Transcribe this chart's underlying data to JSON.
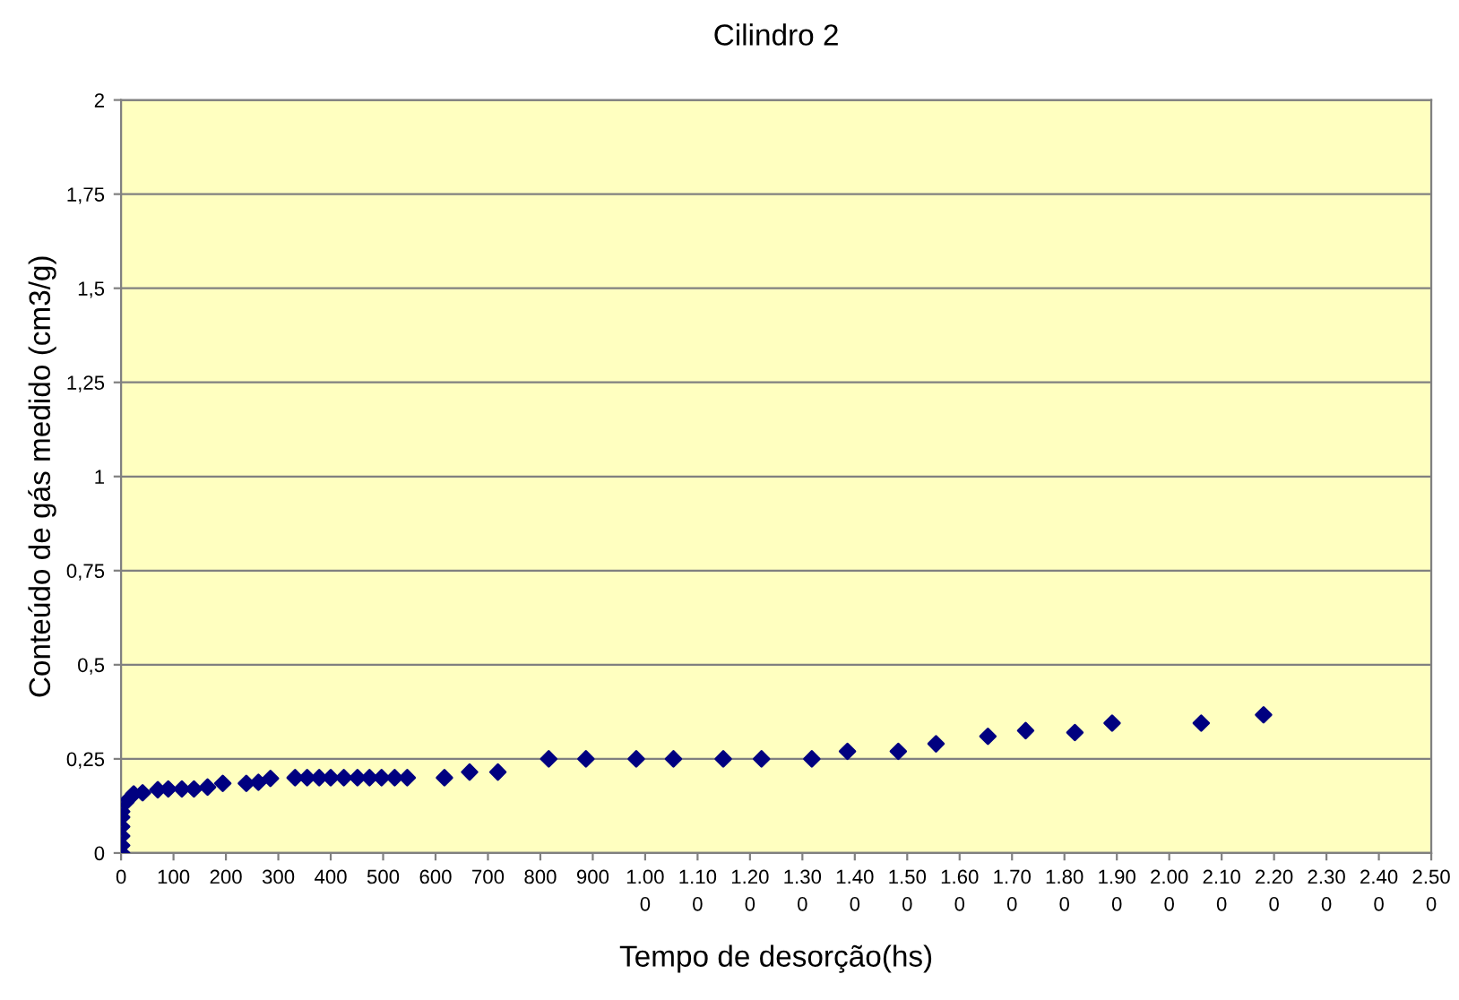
{
  "chart_data": {
    "type": "scatter",
    "title": "Cilindro 2",
    "xlabel": "Tempo de desorção(hs)",
    "ylabel": "Conteúdo de gás medido (cm3/g)",
    "x": [
      1,
      1,
      1,
      1,
      1,
      1,
      9,
      24,
      41,
      70,
      90,
      116,
      139,
      165,
      194,
      239,
      262,
      285,
      332,
      355,
      378,
      400,
      425,
      451,
      474,
      497,
      522,
      546,
      617,
      665,
      719,
      816,
      887,
      983,
      1054,
      1149,
      1222,
      1318,
      1386,
      1483,
      1555,
      1654,
      1726,
      1820,
      1891,
      2061,
      2180
    ],
    "series": [
      {
        "color": "#000080",
        "values": [
          0,
          0.02,
          0.045,
          0.07,
          0.095,
          0.11,
          0.135,
          0.157,
          0.16,
          0.168,
          0.17,
          0.17,
          0.17,
          0.175,
          0.185,
          0.185,
          0.188,
          0.198,
          0.2,
          0.2,
          0.2,
          0.2,
          0.2,
          0.2,
          0.2,
          0.2,
          0.2,
          0.2,
          0.2,
          0.215,
          0.215,
          0.25,
          0.25,
          0.25,
          0.25,
          0.25,
          0.25,
          0.25,
          0.27,
          0.27,
          0.29,
          0.31,
          0.325,
          0.32,
          0.345,
          0.345,
          0.367
        ]
      }
    ],
    "marker": "diamond",
    "grid": "y",
    "legend": false,
    "xlim": [
      0,
      2500
    ],
    "ylim": [
      0,
      2
    ],
    "xticks": [
      0,
      100,
      200,
      300,
      400,
      500,
      600,
      700,
      800,
      900,
      {
        "value": 1000,
        "label": "1.00\n0"
      },
      {
        "value": 1100,
        "label": "1.10\n0"
      },
      {
        "value": 1200,
        "label": "1.20\n0"
      },
      {
        "value": 1300,
        "label": "1.30\n0"
      },
      {
        "value": 1400,
        "label": "1.40\n0"
      },
      {
        "value": 1500,
        "label": "1.50\n0"
      },
      {
        "value": 1600,
        "label": "1.60\n0"
      },
      {
        "value": 1700,
        "label": "1.70\n0"
      },
      {
        "value": 1800,
        "label": "1.80\n0"
      },
      {
        "value": 1900,
        "label": "1.90\n0"
      },
      {
        "value": 2000,
        "label": "2.00\n0"
      },
      {
        "value": 2100,
        "label": "2.10\n0"
      },
      {
        "value": 2200,
        "label": "2.20\n0"
      },
      {
        "value": 2300,
        "label": "2.30\n0"
      },
      {
        "value": 2400,
        "label": "2.40\n0"
      },
      {
        "value": 2500,
        "label": "2.50\n0"
      }
    ],
    "yticks": [
      0,
      {
        "value": 0.25,
        "label": "0,25"
      },
      {
        "value": 0.5,
        "label": "0,5"
      },
      {
        "value": 0.75,
        "label": "0,75"
      },
      1,
      {
        "value": 1.25,
        "label": "1,25"
      },
      {
        "value": 1.5,
        "label": "1,5"
      },
      {
        "value": 1.75,
        "label": "1,75"
      },
      2
    ]
  }
}
